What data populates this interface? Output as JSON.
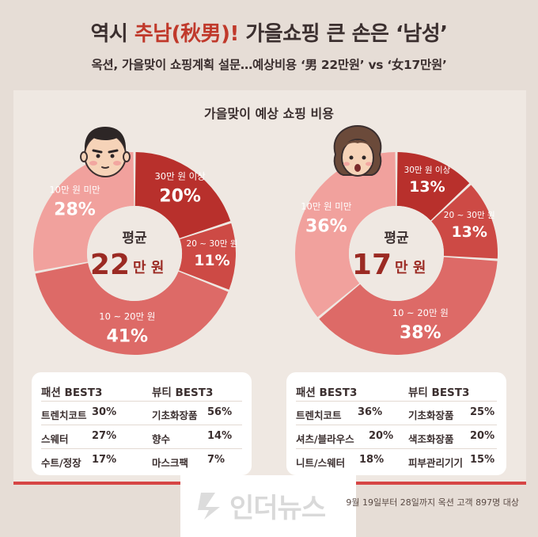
{
  "header": {
    "title_pre": "역시 ",
    "title_accent": "추남(秋男)!",
    "title_post": " 가을쇼핑 큰 손은 ‘남성’",
    "subtitle": "옥션, 가을맞이 쇼핑계획 설문…예상비용 ‘男 22만원’ vs ‘女17만원’"
  },
  "chart_data": [
    {
      "type": "pie",
      "title": "가을맞이 예상 쇼핑 비용",
      "center_label": "평균",
      "center_value": "22",
      "center_unit": "만 원",
      "slices": [
        {
          "label": "30만 원 이상",
          "value": 20,
          "display": "20%",
          "color": "#b8302c"
        },
        {
          "label": "20 ~ 30만 원",
          "value": 11,
          "display": "11%",
          "color": "#cd4a45"
        },
        {
          "label": "10 ~ 20만 원",
          "value": 41,
          "display": "41%",
          "color": "#dd6a67"
        },
        {
          "label": "10만 원 미만",
          "value": 28,
          "display": "28%",
          "color": "#f1a19d"
        }
      ]
    },
    {
      "type": "pie",
      "title": "가을맞이 예상 쇼핑 비용",
      "center_label": "평균",
      "center_value": "17",
      "center_unit": "만 원",
      "slices": [
        {
          "label": "30만 원 이상",
          "value": 13,
          "display": "13%",
          "color": "#b8302c"
        },
        {
          "label": "20 ~ 30만 원",
          "value": 13,
          "display": "13%",
          "color": "#cd4a45"
        },
        {
          "label": "10 ~ 20만 원",
          "value": 38,
          "display": "38%",
          "color": "#dd6a67"
        },
        {
          "label": "10만 원 미만",
          "value": 36,
          "display": "36%",
          "color": "#f1a19d"
        }
      ]
    }
  ],
  "men_best": {
    "fashion_title": "패션 BEST3",
    "beauty_title": "뷰티 BEST3",
    "fashion": [
      {
        "item": "트렌치코트",
        "pct": "30%"
      },
      {
        "item": "스웨터",
        "pct": "27%"
      },
      {
        "item": "수트/정장",
        "pct": "17%"
      }
    ],
    "beauty": [
      {
        "item": "기초화장품",
        "pct": "56%"
      },
      {
        "item": "향수",
        "pct": "14%"
      },
      {
        "item": "마스크팩",
        "pct": "7%"
      }
    ]
  },
  "women_best": {
    "fashion_title": "패션 BEST3",
    "beauty_title": "뷰티 BEST3",
    "fashion": [
      {
        "item": "트렌치코트",
        "pct": "36%"
      },
      {
        "item": "셔츠/블라우스",
        "pct": "20%"
      },
      {
        "item": "니트/스웨터",
        "pct": "18%"
      }
    ],
    "beauty": [
      {
        "item": "기초화장품",
        "pct": "25%"
      },
      {
        "item": "색조화장품",
        "pct": "20%"
      },
      {
        "item": "피부관리기기",
        "pct": "15%"
      }
    ]
  },
  "footer": {
    "note": "9월 19일부터 28일까지 옥션 고객 897명 대상",
    "watermark": "인더뉴스"
  },
  "colors": {
    "accent": "#c0392b",
    "text": "#3b2f2f",
    "background": "#e6ddd6",
    "panel": "#efe8e2"
  }
}
